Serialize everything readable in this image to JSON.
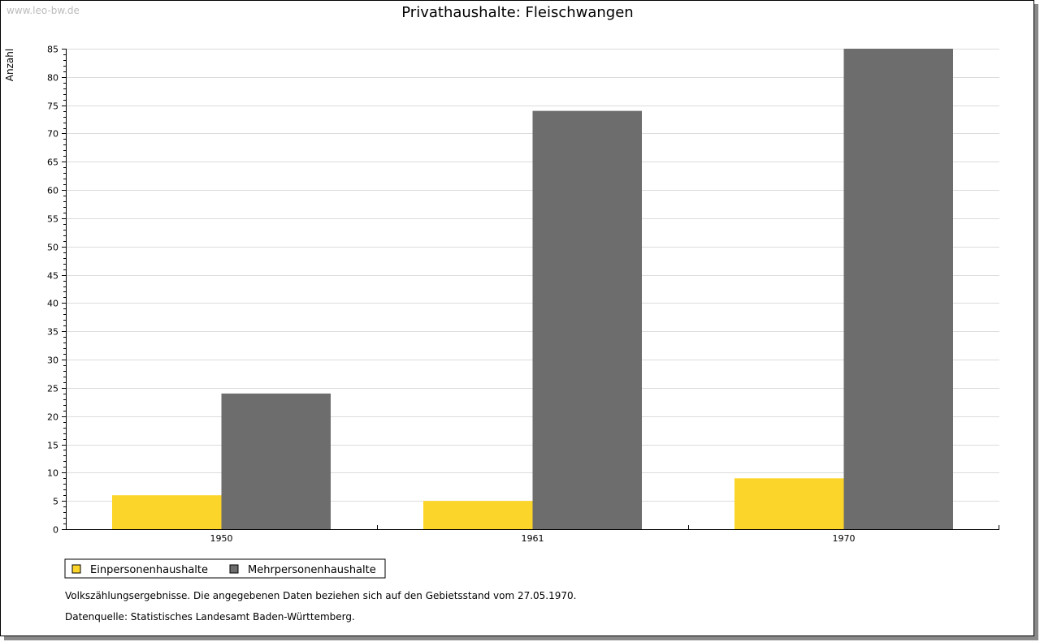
{
  "watermark": "www.leo-bw.de",
  "notes": [
    "Volkszählungsergebnisse. Die angegebenen Daten beziehen sich auf den Gebietsstand vom 27.05.1970.",
    "Datenquelle: Statistisches Landesamt Baden-Württemberg."
  ],
  "chart_data": {
    "type": "bar",
    "title": "Privathaushalte: Fleischwangen",
    "xlabel": "",
    "ylabel": "Anzahl",
    "categories": [
      "1950",
      "1961",
      "1970"
    ],
    "series": [
      {
        "name": "Einpersonenhaushalte",
        "color": "#fcd52b",
        "values": [
          6,
          5,
          9
        ]
      },
      {
        "name": "Mehrpersonenhaushalte",
        "color": "#6d6d6d",
        "values": [
          24,
          74,
          85
        ]
      }
    ],
    "ylim": [
      0,
      85
    ],
    "yticks": [
      "0",
      "5",
      "10",
      "15",
      "20",
      "25",
      "30",
      "35",
      "40",
      "45",
      "50",
      "55",
      "60",
      "65",
      "70",
      "75",
      "80",
      "85"
    ],
    "grid": true,
    "legend_position": "bottom-left"
  }
}
